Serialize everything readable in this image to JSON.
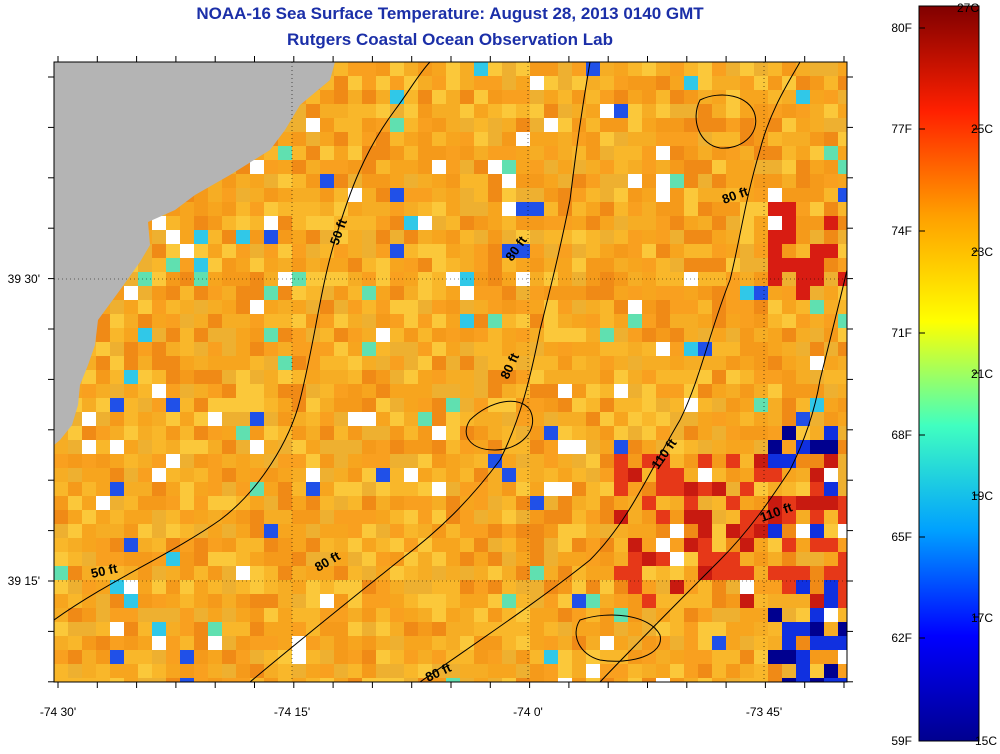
{
  "title": "NOAA-16 Sea Surface Temperature:  August 28, 2013 0140 GMT",
  "subtitle": "Rutgers Coastal Ocean Observation Lab",
  "map": {
    "x_ticks": [
      "-74 30'",
      "-74 15'",
      "-74 0'",
      "-73 45'"
    ],
    "y_ticks": [
      "39 30'",
      "39 15'"
    ],
    "contour_labels": [
      "50 ft",
      "50 ft",
      "80 ft",
      "80 ft",
      "80 ft",
      "80 ft",
      "80 ft",
      "110 ft",
      "110 ft"
    ],
    "colors": {
      "land": "#b4b4b4",
      "no_data": "#ffffff",
      "dominant_sst": "#f5a623"
    }
  },
  "colorbar": {
    "f_labels": [
      "80F",
      "77F",
      "74F",
      "71F",
      "68F",
      "65F",
      "62F",
      "59F"
    ],
    "c_labels": [
      "27C",
      "25C",
      "23C",
      "21C",
      "19C",
      "17C",
      "15C"
    ],
    "range_c": [
      15,
      27
    ],
    "colors": [
      "#00008f",
      "#0000ff",
      "#00a0ff",
      "#40ffc0",
      "#ffff00",
      "#ffa000",
      "#ff2000",
      "#800000"
    ]
  }
}
